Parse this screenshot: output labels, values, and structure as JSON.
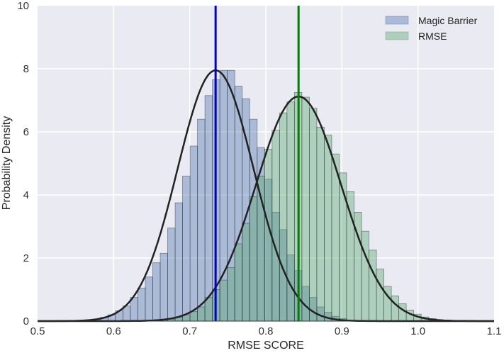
{
  "chart_data": {
    "type": "histogram",
    "title": "",
    "xlabel": "RMSE SCORE",
    "ylabel": "Probability Density",
    "xlim": [
      0.5,
      1.1
    ],
    "ylim": [
      0,
      10
    ],
    "xticks": [
      "0.5",
      "0.6",
      "0.7",
      "0.8",
      "0.9",
      "1.0",
      "1.1"
    ],
    "xtick_values": [
      0.5,
      0.6,
      0.7,
      0.8,
      0.9,
      1.0,
      1.1
    ],
    "yticks": [
      "0",
      "2",
      "4",
      "6",
      "8",
      "10"
    ],
    "ytick_values": [
      0,
      2,
      4,
      6,
      8,
      10
    ],
    "grid": true,
    "background": "#eaeaf2",
    "legend_position": "upper right",
    "bin_width": 0.0098,
    "series": [
      {
        "name": "Magic Barrier",
        "color": "#4c72b0",
        "fill_opacity": 0.4,
        "mean_line": 0.734,
        "mean_line_color": "#0000cc",
        "kde_mean": 0.734,
        "kde_sd": 0.05,
        "kde_peak": 7.95,
        "bins_start": 0.573,
        "values": [
          0.05,
          0.12,
          0.2,
          0.33,
          0.48,
          0.75,
          1.05,
          1.4,
          1.85,
          2.15,
          2.95,
          3.75,
          4.6,
          5.55,
          6.4,
          7.15,
          7.65,
          7.95,
          7.95,
          7.45,
          7.05,
          6.4,
          5.5,
          4.5,
          3.45,
          2.9,
          2.1,
          1.6,
          1.1,
          0.75,
          0.45,
          0.28,
          0.15,
          0.08
        ]
      },
      {
        "name": "RMSE",
        "color": "#55a868",
        "fill_opacity": 0.4,
        "mean_line": 0.843,
        "mean_line_color": "#008000",
        "kde_mean": 0.843,
        "kde_sd": 0.056,
        "kde_peak": 7.12,
        "bins_start": 0.6612,
        "values": [
          0.03,
          0.06,
          0.12,
          0.2,
          0.3,
          0.45,
          0.75,
          1.0,
          1.3,
          1.7,
          2.45,
          3.1,
          3.95,
          4.6,
          5.45,
          6.05,
          6.6,
          6.95,
          7.25,
          7.1,
          6.75,
          6.15,
          5.9,
          5.3,
          4.7,
          4.1,
          3.45,
          2.85,
          2.25,
          1.65,
          1.1,
          0.8,
          0.55,
          0.35,
          0.22,
          0.13,
          0.08,
          0.04
        ]
      }
    ]
  }
}
